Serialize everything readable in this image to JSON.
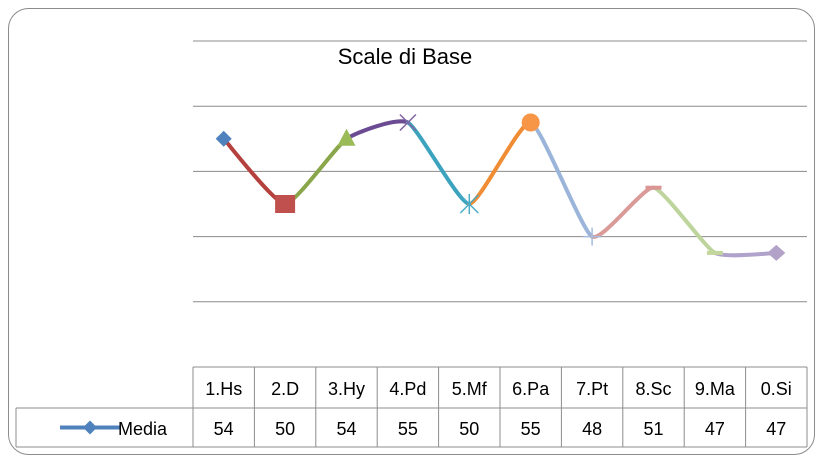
{
  "chart_data": {
    "type": "line",
    "title": "Scale di Base",
    "categories": [
      "1.Hs",
      "2.D",
      "3.Hy",
      "4.Pd",
      "5.Mf",
      "6.Pa",
      "7.Pt",
      "8.Sc",
      "9.Ma",
      "0.Si"
    ],
    "series": [
      {
        "name": "Media",
        "values": [
          54,
          50,
          54,
          55,
          50,
          55,
          48,
          51,
          47,
          47
        ]
      }
    ],
    "ylim": [
      40,
      60
    ],
    "grid": true,
    "legend": "in data table",
    "segment_colors": [
      "#B5413E",
      "#8AA64A",
      "#6B4B92",
      "#3CA3BE",
      "#F08C33",
      "#9BB5DA",
      "#DA9A98",
      "#BDD59C",
      "#AFA3CB"
    ],
    "series_color": "#4F81BD",
    "marker_colors": [
      "#4F81BD",
      "#C0504D",
      "#9BBB59",
      "#8064A2",
      "#4BACC6",
      "#F79646",
      "#A5BCE0",
      "#D99694",
      "#C3D69B",
      "#B3A2C7"
    ]
  }
}
